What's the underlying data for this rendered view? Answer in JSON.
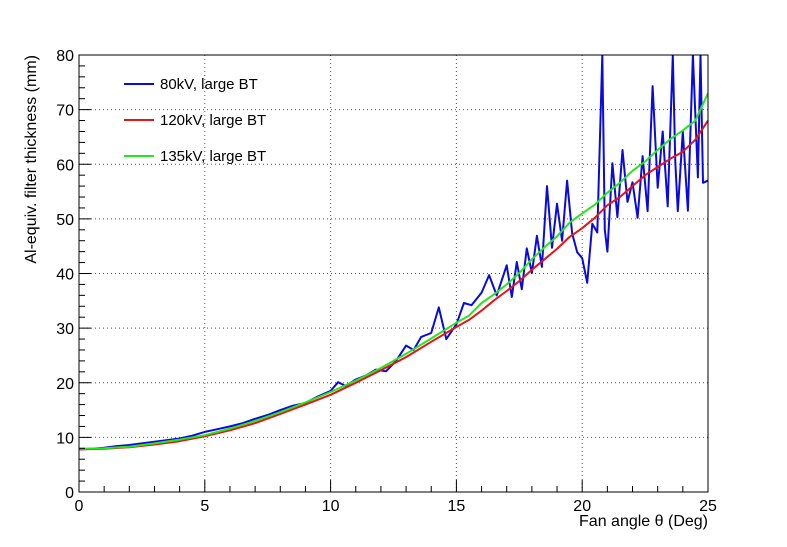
{
  "chart_data": {
    "type": "line",
    "title": "",
    "xlabel": "Fan angle θ (Deg)",
    "ylabel": "Al-equiv. filter thickness (mm)",
    "xlim": [
      0,
      25
    ],
    "ylim": [
      0,
      80
    ],
    "xticks": [
      0,
      5,
      10,
      15,
      20,
      25
    ],
    "yticks": [
      0,
      10,
      20,
      30,
      40,
      50,
      60,
      70,
      80
    ],
    "xtick_labels": [
      "0",
      "5",
      "10",
      "15",
      "20",
      "25"
    ],
    "ytick_labels": [
      "0",
      "10",
      "20",
      "30",
      "40",
      "50",
      "60",
      "70",
      "80"
    ],
    "grid": true,
    "legend_position": "top-left",
    "series": [
      {
        "name": "80kV, large BT",
        "color": "#0a0adc",
        "x": [
          0,
          0.5,
          1,
          1.5,
          2,
          2.5,
          3,
          3.5,
          4,
          4.5,
          5,
          5.5,
          6,
          6.5,
          7,
          7.5,
          8,
          8.5,
          9,
          9.5,
          10,
          10.3,
          10.6,
          11,
          11.4,
          11.8,
          12.2,
          12.6,
          13,
          13.3,
          13.6,
          14,
          14.3,
          14.6,
          15,
          15.3,
          15.6,
          16,
          16.3,
          16.6,
          17,
          17.2,
          17.4,
          17.6,
          17.8,
          18,
          18.2,
          18.4,
          18.6,
          18.8,
          19,
          19.2,
          19.4,
          19.6,
          19.8,
          20,
          20.2,
          20.4,
          20.6,
          20.8,
          20.9,
          21,
          21.2,
          21.4,
          21.6,
          21.8,
          22,
          22.2,
          22.4,
          22.6,
          22.8,
          23,
          23.2,
          23.4,
          23.6,
          23.7,
          23.8,
          24,
          24.2,
          24.4,
          24.6,
          24.7,
          24.8,
          25
        ],
        "y": [
          7.8,
          7.9,
          8.1,
          8.4,
          8.6,
          8.9,
          9.2,
          9.5,
          9.8,
          10.3,
          11.0,
          11.5,
          12.0,
          12.6,
          13.4,
          14.1,
          15.0,
          15.8,
          16.3,
          17.5,
          18.5,
          20.1,
          19.4,
          20.6,
          21.3,
          22.4,
          22.1,
          24.0,
          26.8,
          26.0,
          28.4,
          29.1,
          33.8,
          28.0,
          30.7,
          34.6,
          34.2,
          36.5,
          39.7,
          36.0,
          41.5,
          35.7,
          42.1,
          37.1,
          44.6,
          40.1,
          46.9,
          41.2,
          56.0,
          44.7,
          52.8,
          46.0,
          57.0,
          47.4,
          43.9,
          42.8,
          38.3,
          49.1,
          47.5,
          80.0,
          48.0,
          44.0,
          60.2,
          50.3,
          62.6,
          53.1,
          56.7,
          50.2,
          61.5,
          51.4,
          74.3,
          55.7,
          66.0,
          52.3,
          80.0,
          60.4,
          51.4,
          66.0,
          51.5,
          80.0,
          57.6,
          80.0,
          56.6,
          57.0
        ]
      },
      {
        "name": "120kV, large BT",
        "color": "#e61414",
        "x": [
          0,
          1,
          2,
          3,
          4,
          5,
          6,
          7,
          8,
          9,
          10,
          11,
          12,
          13,
          14,
          15,
          15.5,
          16,
          16.5,
          17,
          17.5,
          18,
          18.5,
          19,
          19.5,
          20,
          20.5,
          21,
          21.5,
          22,
          22.5,
          23,
          23.5,
          24,
          24.5,
          25
        ],
        "y": [
          7.8,
          7.9,
          8.2,
          8.7,
          9.3,
          10.2,
          11.3,
          12.6,
          14.3,
          16.0,
          17.8,
          20.0,
          22.3,
          24.7,
          27.5,
          30.2,
          31.5,
          33.2,
          35.1,
          36.8,
          38.6,
          40.7,
          42.6,
          44.5,
          46.7,
          48.3,
          50.2,
          52.5,
          54.0,
          56.0,
          58.0,
          59.5,
          61.0,
          62.3,
          64.5,
          68.0
        ]
      },
      {
        "name": "135kV, large BT",
        "color": "#28e61e",
        "x": [
          0,
          1,
          2,
          3,
          4,
          5,
          6,
          7,
          8,
          9,
          10,
          11,
          12,
          13,
          14,
          15,
          15.5,
          16,
          16.5,
          17,
          17.5,
          18,
          18.5,
          19,
          19.5,
          20,
          20.5,
          21,
          21.5,
          22,
          22.5,
          23,
          23.5,
          24,
          24.5,
          25
        ],
        "y": [
          7.9,
          8.0,
          8.3,
          8.9,
          9.6,
          10.4,
          11.6,
          13.0,
          14.6,
          16.4,
          18.3,
          20.4,
          22.7,
          25.3,
          28.1,
          31.0,
          32.3,
          34.6,
          36.2,
          38.0,
          40.1,
          42.6,
          44.8,
          46.8,
          49.3,
          51.0,
          52.6,
          54.8,
          56.6,
          58.8,
          60.5,
          62.6,
          64.6,
          66.2,
          68.0,
          73.0
        ]
      }
    ]
  }
}
